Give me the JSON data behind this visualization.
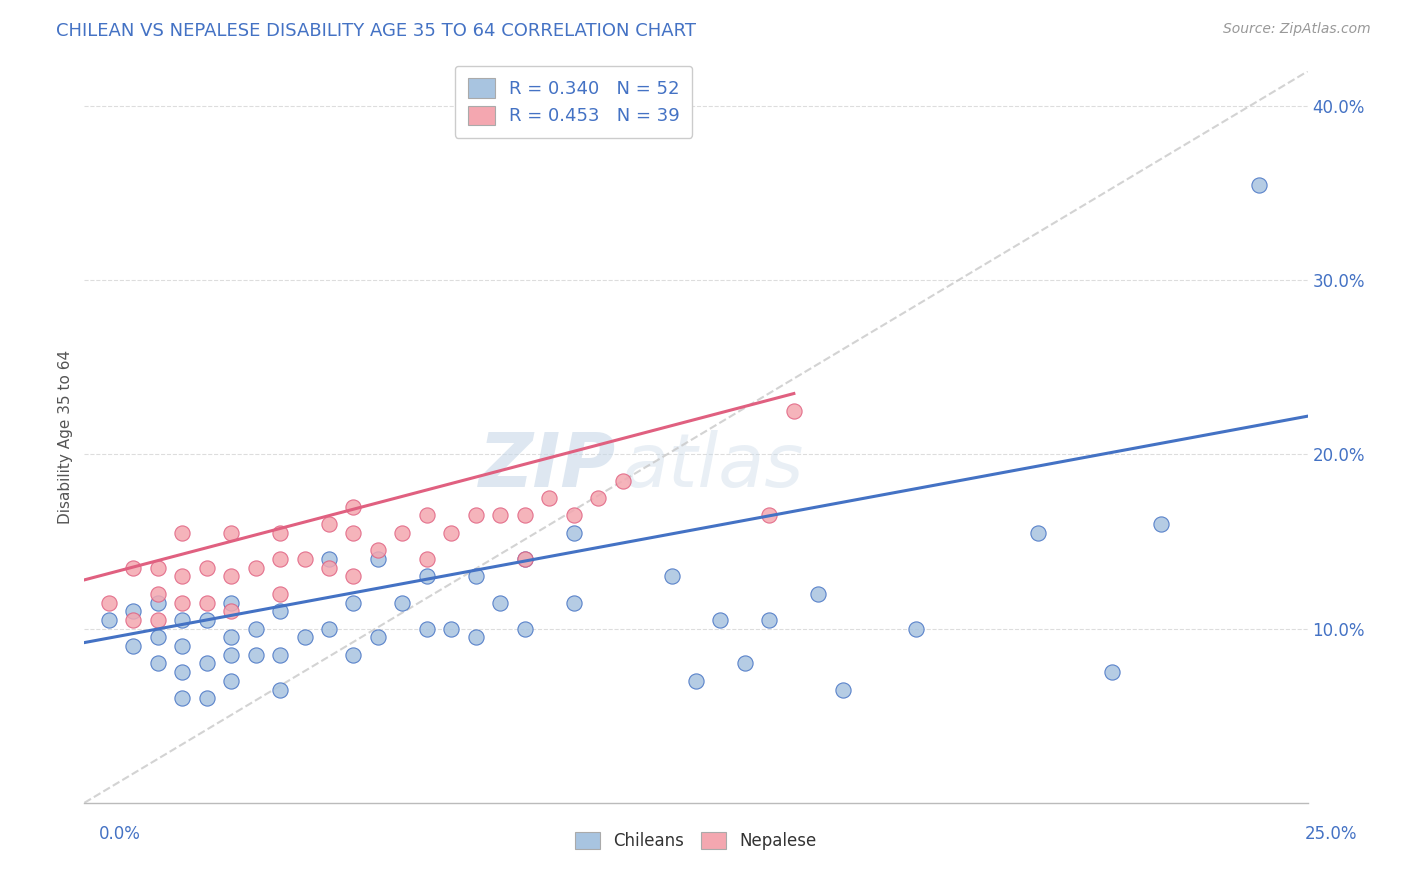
{
  "title": "CHILEAN VS NEPALESE DISABILITY AGE 35 TO 64 CORRELATION CHART",
  "source": "Source: ZipAtlas.com",
  "ylabel": "Disability Age 35 to 64",
  "x_label_bottom_left": "0.0%",
  "x_label_bottom_right": "25.0%",
  "xlim": [
    0.0,
    0.25
  ],
  "ylim": [
    0.0,
    0.42
  ],
  "yticks": [
    0.1,
    0.2,
    0.3,
    0.4
  ],
  "ytick_labels": [
    "10.0%",
    "20.0%",
    "30.0%",
    "40.0%"
  ],
  "chilean_R": 0.34,
  "chilean_N": 52,
  "nepalese_R": 0.453,
  "nepalese_N": 39,
  "chilean_color": "#a8c4e0",
  "nepalese_color": "#f4a7b0",
  "chilean_line_color": "#4472c4",
  "nepalese_line_color": "#e06080",
  "trend_line_color": "#c8c8c8",
  "background_color": "#ffffff",
  "chileans_scatter_x": [
    0.005,
    0.01,
    0.01,
    0.015,
    0.015,
    0.015,
    0.02,
    0.02,
    0.02,
    0.02,
    0.025,
    0.025,
    0.025,
    0.03,
    0.03,
    0.03,
    0.03,
    0.035,
    0.035,
    0.04,
    0.04,
    0.04,
    0.045,
    0.05,
    0.05,
    0.055,
    0.055,
    0.06,
    0.06,
    0.065,
    0.07,
    0.07,
    0.075,
    0.08,
    0.08,
    0.085,
    0.09,
    0.09,
    0.1,
    0.1,
    0.12,
    0.125,
    0.13,
    0.135,
    0.14,
    0.15,
    0.155,
    0.17,
    0.195,
    0.21,
    0.22,
    0.24
  ],
  "chileans_scatter_y": [
    0.105,
    0.09,
    0.11,
    0.08,
    0.095,
    0.115,
    0.06,
    0.075,
    0.09,
    0.105,
    0.06,
    0.08,
    0.105,
    0.07,
    0.085,
    0.095,
    0.115,
    0.085,
    0.1,
    0.065,
    0.085,
    0.11,
    0.095,
    0.1,
    0.14,
    0.085,
    0.115,
    0.095,
    0.14,
    0.115,
    0.1,
    0.13,
    0.1,
    0.095,
    0.13,
    0.115,
    0.1,
    0.14,
    0.115,
    0.155,
    0.13,
    0.07,
    0.105,
    0.08,
    0.105,
    0.12,
    0.065,
    0.1,
    0.155,
    0.075,
    0.16,
    0.355
  ],
  "nepalese_scatter_x": [
    0.005,
    0.01,
    0.01,
    0.015,
    0.015,
    0.015,
    0.02,
    0.02,
    0.02,
    0.025,
    0.025,
    0.03,
    0.03,
    0.03,
    0.035,
    0.04,
    0.04,
    0.04,
    0.045,
    0.05,
    0.05,
    0.055,
    0.055,
    0.055,
    0.06,
    0.065,
    0.07,
    0.07,
    0.075,
    0.08,
    0.085,
    0.09,
    0.09,
    0.095,
    0.1,
    0.105,
    0.11,
    0.14,
    0.145
  ],
  "nepalese_scatter_y": [
    0.115,
    0.105,
    0.135,
    0.105,
    0.12,
    0.135,
    0.115,
    0.13,
    0.155,
    0.115,
    0.135,
    0.11,
    0.13,
    0.155,
    0.135,
    0.12,
    0.14,
    0.155,
    0.14,
    0.135,
    0.16,
    0.13,
    0.155,
    0.17,
    0.145,
    0.155,
    0.14,
    0.165,
    0.155,
    0.165,
    0.165,
    0.14,
    0.165,
    0.175,
    0.165,
    0.175,
    0.185,
    0.165,
    0.225
  ],
  "chilean_line_x": [
    0.0,
    0.25
  ],
  "chilean_line_y": [
    0.092,
    0.222
  ],
  "nepalese_line_x": [
    0.0,
    0.145
  ],
  "nepalese_line_y": [
    0.128,
    0.235
  ],
  "diag_line_x": [
    0.0,
    0.25
  ],
  "diag_line_y": [
    0.0,
    0.42
  ],
  "watermark_zip": "ZIP",
  "watermark_atlas": "atlas",
  "legend_chileans": "Chileans",
  "legend_nepalese": "Nepalese"
}
